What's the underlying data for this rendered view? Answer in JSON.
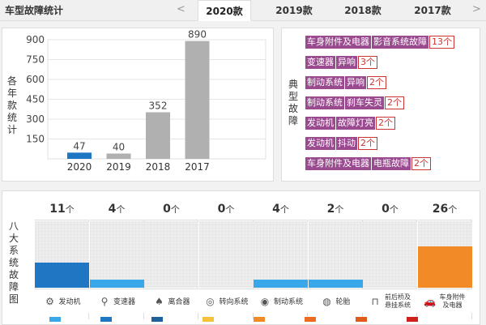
{
  "header": {
    "title": "车型故障统计",
    "prev": "<",
    "next": ">",
    "tabs": [
      {
        "label": "2020款",
        "active": true
      },
      {
        "label": "2019款",
        "active": false
      },
      {
        "label": "2018款",
        "active": false
      },
      {
        "label": "2017款",
        "active": false
      }
    ]
  },
  "yearly": {
    "ylabel": "各年款统计",
    "chart_data": {
      "type": "bar",
      "categories": [
        "2020",
        "2019",
        "2018",
        "2017"
      ],
      "values": [
        47,
        40,
        352,
        890
      ],
      "ylim": [
        0,
        900
      ],
      "yticks": [
        150,
        300,
        450,
        600,
        750,
        900
      ],
      "colors": [
        "#1f77c4",
        "#b0b0b0",
        "#b0b0b0",
        "#b0b0b0"
      ]
    }
  },
  "typical": {
    "label": "典型故障",
    "rows": [
      {
        "tags": [
          "车身附件及电器",
          "影音系统故障"
        ],
        "count": "13个"
      },
      {
        "tags": [
          "变速器",
          "异响"
        ],
        "count": "3个"
      },
      {
        "tags": [
          "制动系统",
          "异响"
        ],
        "count": "2个"
      },
      {
        "tags": [
          "制动系统",
          "刹车失灵"
        ],
        "count": "2个"
      },
      {
        "tags": [
          "发动机",
          "故障灯亮"
        ],
        "count": "2个"
      },
      {
        "tags": [
          "发动机",
          "抖动"
        ],
        "count": "2个"
      },
      {
        "tags": [
          "车身附件及电器",
          "电瓶故障"
        ],
        "count": "2个"
      }
    ]
  },
  "systems": {
    "label": "八大系统故障图",
    "unit": "个",
    "items": [
      {
        "name": "发动机",
        "icon": "engine-icon",
        "glyph": "⚙",
        "count": "11",
        "level": 0.38,
        "color": "#1f77c4"
      },
      {
        "name": "变速器",
        "icon": "gearbox-icon",
        "glyph": "⚲",
        "count": "4",
        "level": 0.12,
        "color": "#3aa7e8"
      },
      {
        "name": "离合器",
        "icon": "clutch-icon",
        "glyph": "♠",
        "count": "0",
        "level": 0,
        "color": "#3aa7e8"
      },
      {
        "name": "转向系统",
        "icon": "steering-wheel-icon",
        "glyph": "◎",
        "count": "0",
        "level": 0,
        "color": "#3aa7e8"
      },
      {
        "name": "制动系统",
        "icon": "brake-icon",
        "glyph": "◉",
        "count": "4",
        "level": 0.12,
        "color": "#3aa7e8"
      },
      {
        "name": "轮胎",
        "icon": "tire-icon",
        "glyph": "◍",
        "count": "2",
        "level": 0.12,
        "color": "#3aa7e8"
      },
      {
        "name": "前后桥及悬挂系统",
        "icon": "suspension-icon",
        "glyph": "⊓",
        "count": "0",
        "level": 0,
        "color": "#3aa7e8"
      },
      {
        "name": "车身附件及电器",
        "icon": "car-body-icon",
        "glyph": "🚗",
        "count": "26",
        "level": 0.62,
        "color": "#f28a26"
      }
    ],
    "legend_colors": [
      "#3aa7e8",
      "#1f77c4",
      "#1f5f9a",
      "#f5c23a",
      "#f28a26",
      "#ee6b1f",
      "#e05a1a",
      "#d0201a"
    ]
  }
}
